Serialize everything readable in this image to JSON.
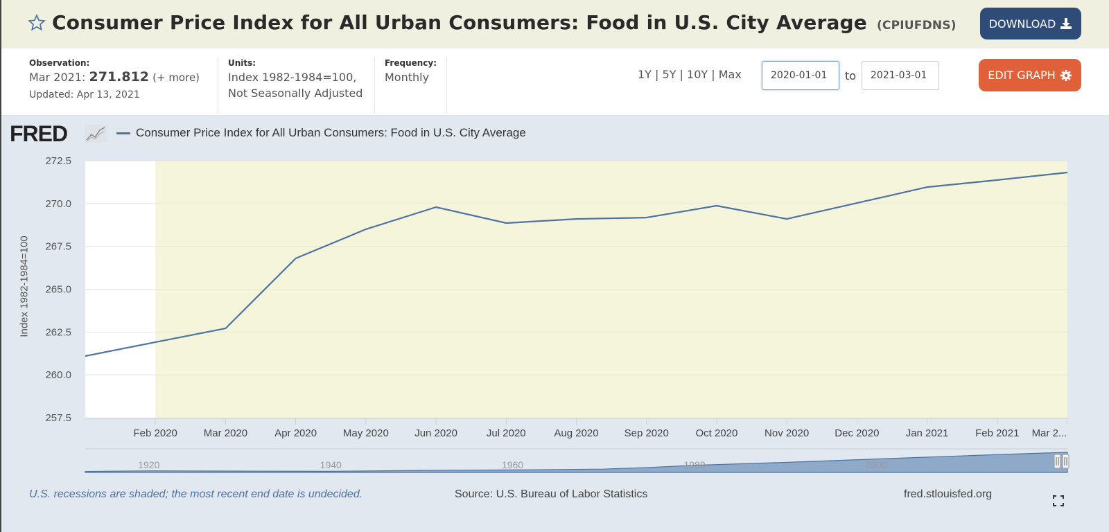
{
  "header": {
    "title": "Consumer Price Index for All Urban Consumers: Food in U.S. City Average",
    "series_id": "(CPIUFDNS)",
    "download_label": "DOWNLOAD",
    "favorite_icon": "star-outline-icon",
    "download_icon": "download-icon"
  },
  "meta": {
    "observation_label": "Observation:",
    "observation_date": "Mar 2021:",
    "observation_value": "271.812",
    "observation_more": "(+ more)",
    "updated": "Updated: Apr 13, 2021",
    "units_label": "Units:",
    "units_line1": "Index 1982-1984=100,",
    "units_line2": "Not Seasonally Adjusted",
    "frequency_label": "Frequency:",
    "frequency_value": "Monthly"
  },
  "controls": {
    "ranges": [
      "1Y",
      "5Y",
      "10Y",
      "Max"
    ],
    "start_date": "2020-01-01",
    "to_label": "to",
    "end_date": "2021-03-01",
    "edit_label": "EDIT GRAPH",
    "edit_icon": "gear-icon"
  },
  "colors": {
    "line": "#4f72a4",
    "recession_shade": "#f5f5dc",
    "download_button": "#2f4b78",
    "edit_button": "#e06039",
    "title_bar": "#f0f0e1",
    "chart_background": "#e1e8ef"
  },
  "logo": {
    "text": "FRED"
  },
  "chart_data": {
    "type": "line",
    "title": "Consumer Price Index for All Urban Consumers: Food in U.S. City Average",
    "xlabel": "",
    "ylabel": "Index 1982-1984=100",
    "ylim": [
      257.5,
      272.5
    ],
    "yticks": [
      "257.5",
      "260.0",
      "262.5",
      "265.0",
      "267.5",
      "270.0",
      "272.5"
    ],
    "x": [
      "Jan 2020",
      "Feb 2020",
      "Mar 2020",
      "Apr 2020",
      "May 2020",
      "Jun 2020",
      "Jul 2020",
      "Aug 2020",
      "Sep 2020",
      "Oct 2020",
      "Nov 2020",
      "Dec 2020",
      "Jan 2021",
      "Feb 2021",
      "Mar 2021"
    ],
    "xtick_labels": [
      "Feb 2020",
      "Mar 2020",
      "Apr 2020",
      "May 2020",
      "Jun 2020",
      "Jul 2020",
      "Aug 2020",
      "Sep 2020",
      "Oct 2020",
      "Nov 2020",
      "Dec 2020",
      "Jan 2021",
      "Feb 2021",
      "Mar 2..."
    ],
    "series": [
      {
        "name": "Consumer Price Index for All Urban Consumers: Food in U.S. City Average",
        "values": [
          261.1,
          261.91,
          262.71,
          266.8,
          268.5,
          269.79,
          268.86,
          269.1,
          269.18,
          269.87,
          269.1,
          270.03,
          270.96,
          271.37,
          271.812
        ]
      }
    ],
    "recession_shading": {
      "start": "Feb 2020",
      "end": "Mar 2021"
    },
    "grid": true,
    "legend": "top-left",
    "navigator": {
      "labels": [
        "1920",
        "1940",
        "1960",
        "1980",
        "2000"
      ]
    }
  },
  "footer": {
    "recession_note": "U.S. recessions are shaded; the most recent end date is undecided.",
    "source": "Source: U.S. Bureau of Labor Statistics",
    "site": "fred.stlouisfed.org",
    "expand_icon": "fullscreen-icon"
  }
}
